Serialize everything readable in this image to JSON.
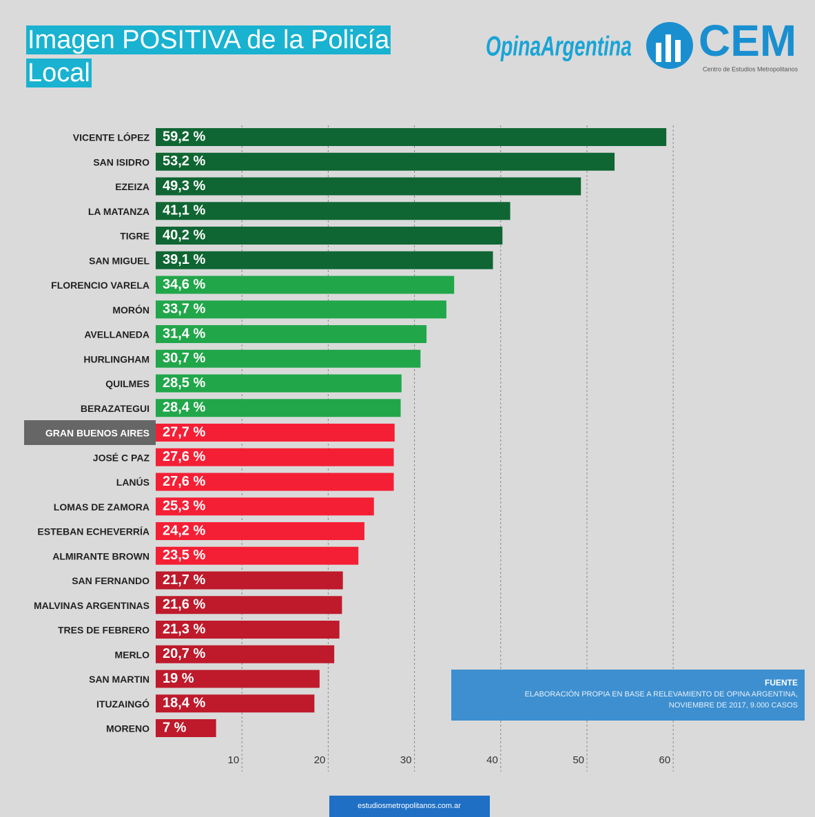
{
  "chart_data": {
    "type": "barh",
    "title": "Imagen POSITIVA de la Policía Local",
    "logos": {
      "opina": "OpinaArgentina",
      "cem": "CEM",
      "cem_subtitle": "Centro de Estudios Metropolitanos"
    },
    "categories": [
      "VICENTE LÓPEZ",
      "SAN ISIDRO",
      "EZEIZA",
      "LA MATANZA",
      "TIGRE",
      "SAN MIGUEL",
      "FLORENCIO VARELA",
      "MORÓN",
      "AVELLANEDA",
      "HURLINGHAM",
      "QUILMES",
      "BERAZATEGUI",
      "GRAN BUENOS AIRES",
      "JOSÉ C PAZ",
      "LANÚS",
      "LOMAS DE ZAMORA",
      "ESTEBAN ECHEVERRÍA",
      "ALMIRANTE BROWN",
      "SAN FERNANDO",
      "MALVINAS ARGENTINAS",
      "TRES DE FEBRERO",
      "MERLO",
      "SAN MARTIN",
      "ITUZAINGÓ",
      "MORENO"
    ],
    "values": [
      59.2,
      53.2,
      49.3,
      41.1,
      40.2,
      39.1,
      34.6,
      33.7,
      31.4,
      30.7,
      28.5,
      28.4,
      27.7,
      27.6,
      27.6,
      25.3,
      24.2,
      23.5,
      21.7,
      21.6,
      21.3,
      20.7,
      19,
      18.4,
      7
    ],
    "value_labels": [
      "59,2 %",
      "53,2 %",
      "49,3 %",
      "41,1 %",
      "40,2 %",
      "39,1 %",
      "34,6 %",
      "33,7 %",
      "31,4 %",
      "30,7 %",
      "28,5 %",
      "28,4 %",
      "27,7 %",
      "27,6 %",
      "27,6 %",
      "25,3 %",
      "24,2 %",
      "23,5 %",
      "21,7 %",
      "21,6 %",
      "21,3 %",
      "20,7 %",
      "19 %",
      "18,4 %",
      "7 %"
    ],
    "colors": [
      "#0f6633",
      "#0f6633",
      "#0f6633",
      "#0f6633",
      "#0f6633",
      "#0f6633",
      "#21a64a",
      "#21a64a",
      "#21a64a",
      "#21a64a",
      "#21a64a",
      "#21a64a",
      "#f51f35",
      "#f51f35",
      "#f51f35",
      "#f51f35",
      "#f51f35",
      "#f51f35",
      "#be1a2b",
      "#be1a2b",
      "#be1a2b",
      "#be1a2b",
      "#be1a2b",
      "#be1a2b",
      "#be1a2b"
    ],
    "highlight_index": 12,
    "xlim": [
      0,
      75
    ],
    "xticks": [
      10,
      20,
      30,
      40,
      50,
      60
    ],
    "grid": true,
    "source": {
      "title": "FUENTE",
      "lines": [
        "ELABORACIÓN PROPIA EN BASE A RELEVAMIENTO DE OPINA ARGENTINA,",
        "NOVIEMBRE DE 2017, 9.000 CASOS"
      ]
    },
    "footer": "estudiosmetropolitanos.com.ar"
  }
}
